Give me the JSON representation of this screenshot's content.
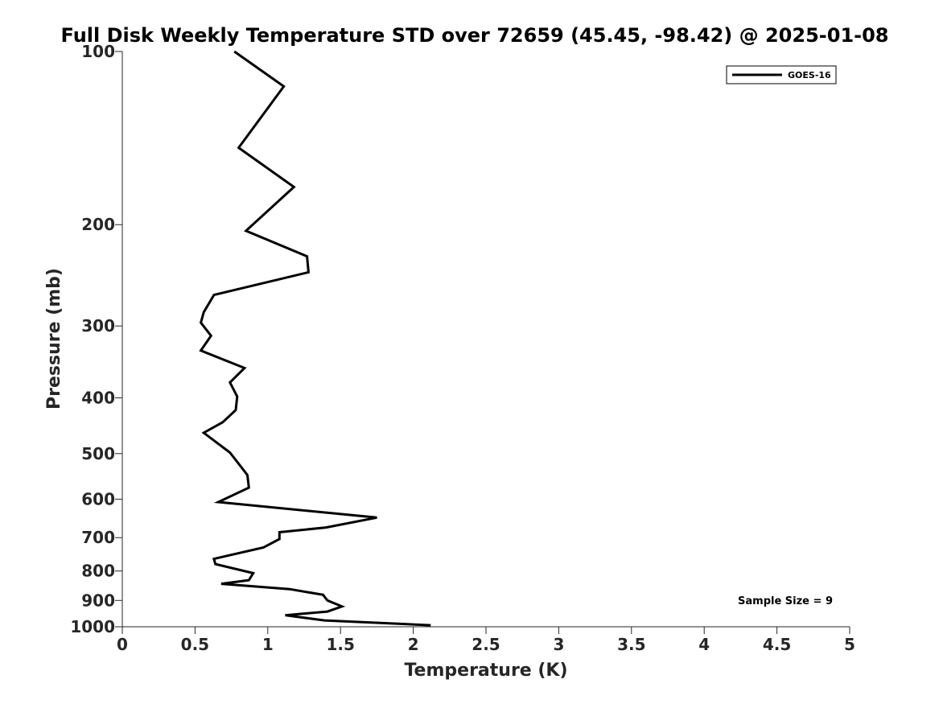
{
  "chart_data": {
    "type": "line",
    "title": "Full Disk Weekly Temperature STD over 72659 (45.45, -98.42) @ 2025-01-08",
    "xlabel": "Temperature (K)",
    "ylabel": "Pressure (mb)",
    "xlim": [
      0,
      5
    ],
    "ylim": [
      100,
      1000
    ],
    "yscale": "log",
    "y_reversed": true,
    "grid": false,
    "xticks": [
      0,
      0.5,
      1,
      1.5,
      2,
      2.5,
      3,
      3.5,
      4,
      4.5,
      5
    ],
    "xtick_labels": [
      "0",
      "0.5",
      "1",
      "1.5",
      "2",
      "2.5",
      "3",
      "3.5",
      "4",
      "4.5",
      "5"
    ],
    "yticks": [
      100,
      200,
      300,
      400,
      500,
      600,
      700,
      800,
      900,
      1000
    ],
    "ytick_labels": [
      "100",
      "200",
      "300",
      "400",
      "500",
      "600",
      "700",
      "800",
      "900",
      "1000"
    ],
    "legend_position": "top-right",
    "series": [
      {
        "name": "GOES-16",
        "color": "#000000",
        "x": [
          0.77,
          1.11,
          0.8,
          1.18,
          0.85,
          1.27,
          1.28,
          0.63,
          0.56,
          0.54,
          0.61,
          0.54,
          0.84,
          0.74,
          0.79,
          0.78,
          0.69,
          0.56,
          0.74,
          0.86,
          0.87,
          0.66,
          1.75,
          1.4,
          1.08,
          1.08,
          0.97,
          0.63,
          0.64,
          0.9,
          0.87,
          0.68,
          1.15,
          1.38,
          1.41,
          1.51,
          1.41,
          1.12,
          1.39,
          2.12
        ],
        "y": [
          100,
          115,
          147,
          172,
          205,
          227,
          242,
          265,
          284,
          296,
          312,
          331,
          355,
          376,
          398,
          420,
          441,
          460,
          498,
          545,
          573,
          607,
          646,
          672,
          685,
          704,
          728,
          762,
          778,
          807,
          830,
          842,
          860,
          880,
          900,
          922,
          941,
          955,
          975,
          994
        ]
      }
    ],
    "annotations": [
      {
        "text": "Sample Size = 9",
        "position": "bottom-right"
      }
    ]
  }
}
